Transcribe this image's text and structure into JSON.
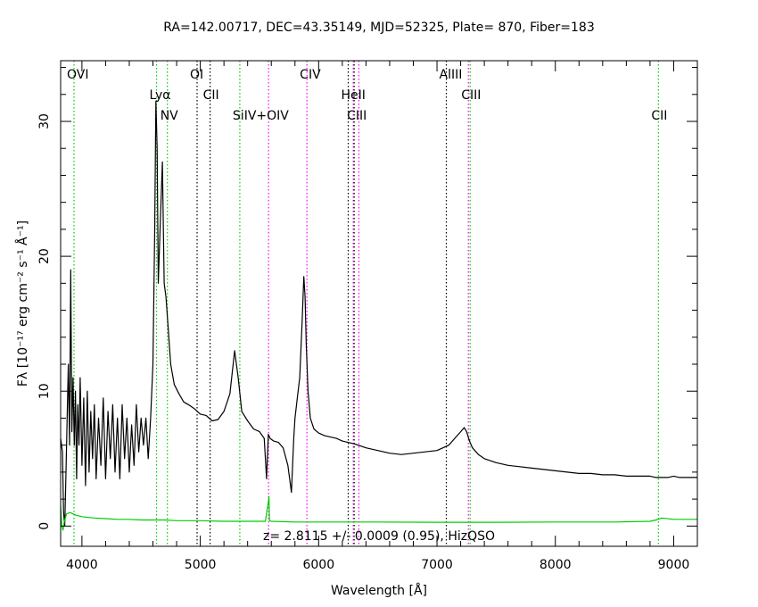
{
  "chart_data": {
    "type": "line",
    "title": "RA=142.00717, DEC=43.35149, MJD=52325, Plate= 870, Fiber=183",
    "xlabel": "Wavelength [Å]",
    "ylabel": "Fλ [10⁻¹⁷ erg cm⁻² s⁻¹ Å⁻¹]",
    "xlim": [
      3820,
      9200
    ],
    "ylim": [
      -1.5,
      34.5
    ],
    "x_ticks": [
      4000,
      5000,
      6000,
      7000,
      8000,
      9000
    ],
    "y_ticks": [
      0,
      10,
      20,
      30
    ],
    "grid": false,
    "annotation": "z= 2.8115 +/- 0.0009 (0.95), HizQSO",
    "colors": {
      "flux": "#000000",
      "error": "#00cc00",
      "emission": "#00cc00",
      "absorption": "#ff00ff",
      "sky": "#000000"
    },
    "series": [
      {
        "role": "flux",
        "x": [
          3820,
          3835,
          3845,
          3855,
          3865,
          3875,
          3885,
          3895,
          3905,
          3915,
          3925,
          3935,
          3945,
          3955,
          3965,
          3975,
          3985,
          4000,
          4015,
          4030,
          4045,
          4060,
          4075,
          4090,
          4105,
          4120,
          4140,
          4160,
          4180,
          4200,
          4220,
          4240,
          4260,
          4280,
          4300,
          4320,
          4340,
          4360,
          4380,
          4400,
          4420,
          4440,
          4460,
          4480,
          4500,
          4520,
          4540,
          4560,
          4580,
          4600,
          4615,
          4625,
          4635,
          4645,
          4660,
          4680,
          4695,
          4710,
          4730,
          4750,
          4780,
          4820,
          4860,
          4900,
          4950,
          5000,
          5050,
          5100,
          5150,
          5200,
          5250,
          5290,
          5320,
          5350,
          5400,
          5450,
          5500,
          5540,
          5560,
          5575,
          5590,
          5620,
          5660,
          5700,
          5740,
          5770,
          5790,
          5800,
          5820,
          5840,
          5860,
          5875,
          5885,
          5895,
          5910,
          5930,
          5960,
          6000,
          6050,
          6100,
          6150,
          6200,
          6300,
          6400,
          6500,
          6600,
          6700,
          6800,
          6900,
          7000,
          7050,
          7100,
          7150,
          7200,
          7230,
          7250,
          7275,
          7300,
          7350,
          7400,
          7500,
          7600,
          7700,
          7800,
          7900,
          8000,
          8100,
          8200,
          8300,
          8400,
          8500,
          8600,
          8700,
          8800,
          8850,
          8900,
          8950,
          9000,
          9050,
          9100,
          9150,
          9200
        ],
        "y": [
          6.5,
          5.5,
          1.0,
          0.0,
          4.0,
          8.0,
          12.0,
          6.0,
          19.0,
          7.0,
          11.0,
          6.0,
          10.0,
          3.5,
          9.0,
          6.0,
          11.0,
          4.5,
          9.5,
          3.0,
          10.0,
          4.0,
          8.5,
          5.0,
          9.0,
          3.5,
          8.0,
          4.5,
          9.5,
          3.5,
          8.5,
          5.0,
          9.0,
          4.0,
          8.0,
          3.5,
          9.0,
          5.0,
          8.0,
          4.0,
          7.5,
          4.5,
          9.0,
          5.5,
          8.0,
          6.0,
          8.0,
          5.0,
          8.0,
          12.0,
          22.0,
          31.5,
          28.0,
          18.0,
          22.0,
          27.0,
          18.0,
          17.0,
          14.5,
          12.0,
          10.5,
          9.8,
          9.2,
          9.0,
          8.7,
          8.3,
          8.2,
          7.8,
          7.9,
          8.5,
          9.8,
          13.0,
          11.0,
          8.5,
          7.8,
          7.2,
          7.0,
          6.5,
          3.5,
          6.8,
          6.5,
          6.3,
          6.2,
          5.8,
          4.5,
          2.5,
          6.5,
          8.0,
          9.5,
          11.0,
          15.0,
          18.5,
          17.0,
          13.5,
          10.0,
          8.0,
          7.2,
          6.9,
          6.7,
          6.6,
          6.5,
          6.3,
          6.1,
          5.8,
          5.6,
          5.4,
          5.3,
          5.4,
          5.5,
          5.6,
          5.8,
          6.0,
          6.5,
          7.0,
          7.3,
          7.0,
          6.3,
          5.8,
          5.3,
          5.0,
          4.7,
          4.5,
          4.4,
          4.3,
          4.2,
          4.1,
          4.0,
          3.9,
          3.9,
          3.8,
          3.8,
          3.7,
          3.7,
          3.7,
          3.6,
          3.6,
          3.6,
          3.7,
          3.6,
          3.6,
          3.6,
          3.6
        ]
      },
      {
        "role": "error",
        "x": [
          3820,
          3830,
          3840,
          3850,
          3860,
          3870,
          3900,
          3950,
          4000,
          4100,
          4200,
          4300,
          4400,
          4500,
          4600,
          4700,
          4800,
          5000,
          5200,
          5400,
          5550,
          5575,
          5580,
          5585,
          5600,
          5800,
          6000,
          6500,
          7000,
          7500,
          8000,
          8500,
          8800,
          8850,
          8900,
          9000,
          9200
        ],
        "y": [
          1.5,
          0.0,
          -0.3,
          0.3,
          0.6,
          0.9,
          1.0,
          0.8,
          0.7,
          0.6,
          0.55,
          0.5,
          0.5,
          0.45,
          0.45,
          0.45,
          0.4,
          0.4,
          0.35,
          0.35,
          0.35,
          1.8,
          2.2,
          0.4,
          0.35,
          0.3,
          0.3,
          0.3,
          0.28,
          0.28,
          0.3,
          0.3,
          0.35,
          0.45,
          0.6,
          0.5,
          0.5
        ]
      }
    ],
    "lines": [
      {
        "label": "OVI",
        "x": 3933,
        "kind": "emission",
        "row": 0
      },
      {
        "label": "Lyα",
        "x": 4630,
        "kind": "emission",
        "row": 1
      },
      {
        "label": "NV",
        "x": 4722,
        "kind": "emission",
        "row": 2
      },
      {
        "label": "OI",
        "x": 4973,
        "kind": "sky",
        "row": 0
      },
      {
        "label": "CII",
        "x": 5083,
        "kind": "sky",
        "row": 1
      },
      {
        "label": "SiIV+OIV",
        "x": 5334,
        "kind": "emission",
        "row": 2
      },
      {
        "label": "",
        "x": 5577,
        "kind": "absorption",
        "row": -1
      },
      {
        "label": "CIV",
        "x": 5901,
        "kind": "absorption",
        "row": 0
      },
      {
        "label": "HeII",
        "x": 6250,
        "kind": "sky",
        "row": 1
      },
      {
        "label": "",
        "x": 6293,
        "kind": "absorption",
        "row": -1
      },
      {
        "label": "CIII",
        "x": 6300,
        "kind": "sky",
        "row": 2
      },
      {
        "label": "",
        "x": 6340,
        "kind": "absorption",
        "row": -1
      },
      {
        "label": "AlIII",
        "x": 7079,
        "kind": "sky",
        "row": 0
      },
      {
        "label": "CIII",
        "x": 7265,
        "kind": "absorption",
        "row": 1
      },
      {
        "label": "",
        "x": 7280,
        "kind": "emission",
        "row": -1
      },
      {
        "label": "CII",
        "x": 8871,
        "kind": "emission",
        "row": 2
      }
    ]
  }
}
